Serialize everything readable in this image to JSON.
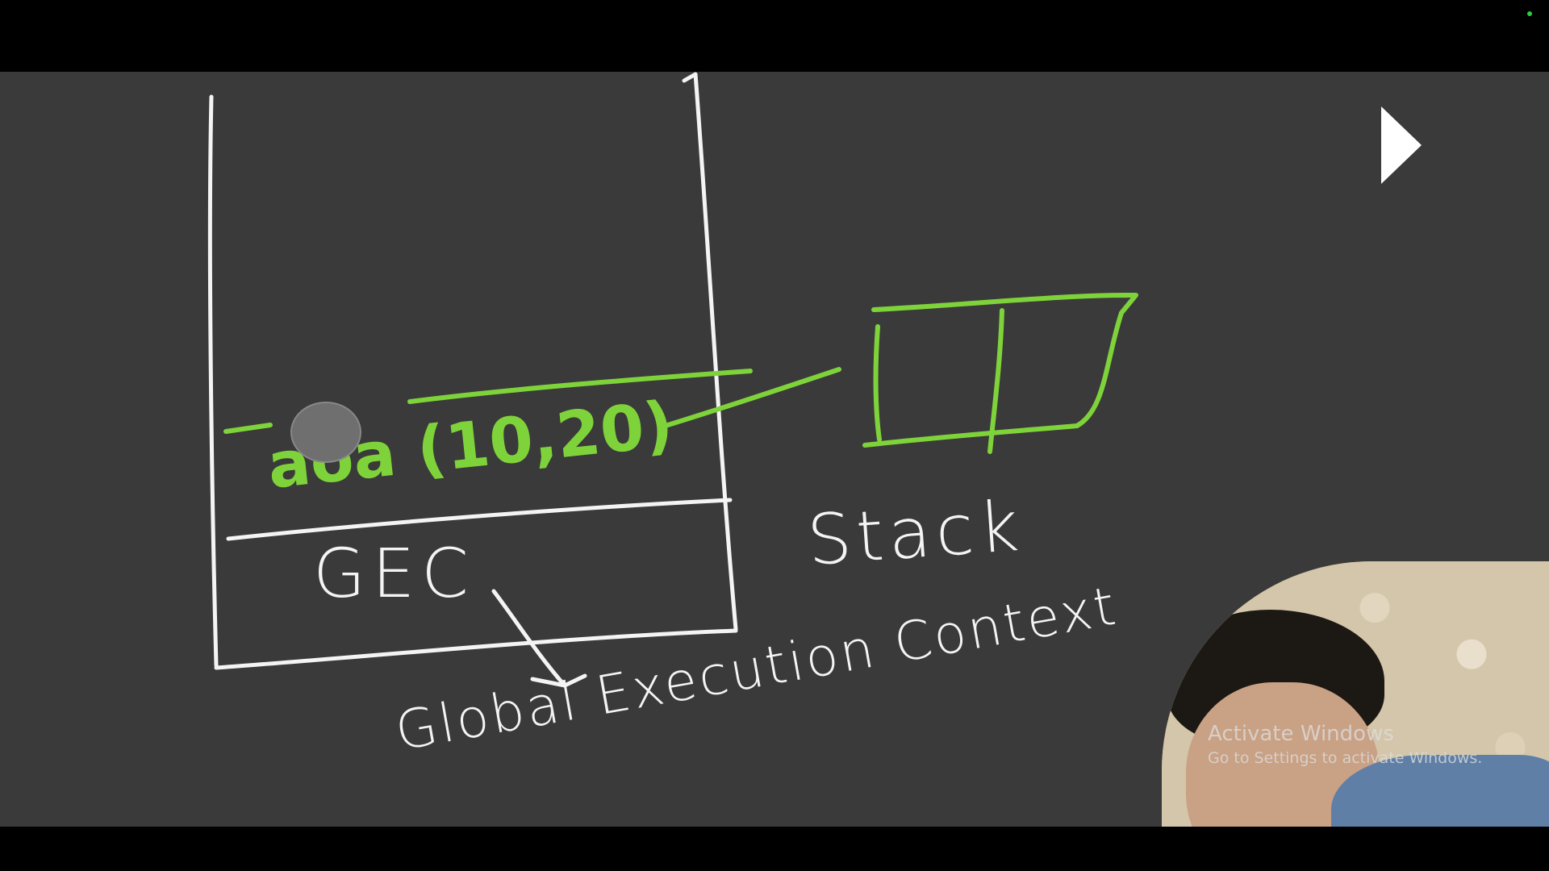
{
  "drawing": {
    "function_call_label": "aoa (10,20)",
    "gec_label": "GEC",
    "gec_full_label": "Global Execution Context",
    "stack_label": "Stack"
  },
  "controls": {
    "play_icon": "play-icon"
  },
  "watermark": {
    "title": "Activate Windows",
    "subtitle": "Go to Settings to activate Windows."
  },
  "colors": {
    "board": "#3a3a3a",
    "chalk_white": "#f4f4f4",
    "chalk_green": "#7fd33a"
  }
}
